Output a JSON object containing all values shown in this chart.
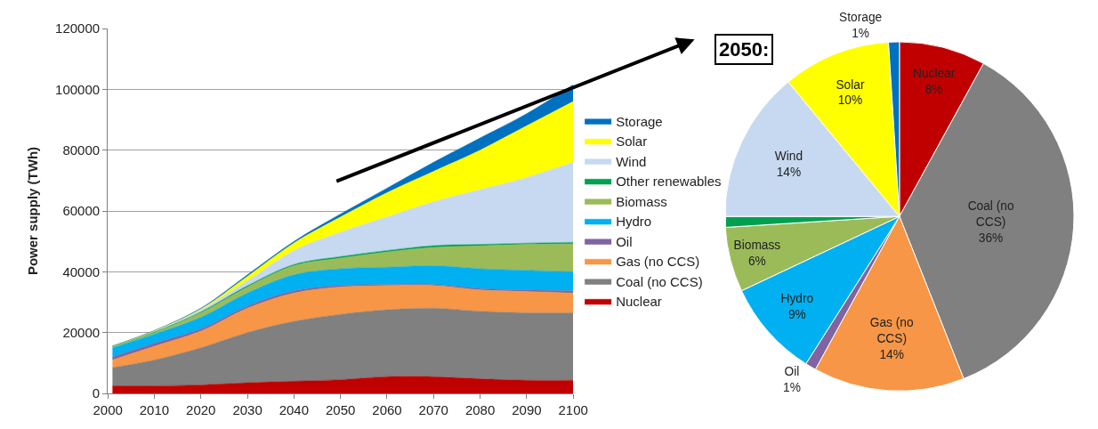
{
  "chart_data": [
    {
      "type": "area",
      "stacked": true,
      "ylabel": "Power supply (TWh)",
      "x": [
        2001,
        2010,
        2020,
        2030,
        2040,
        2050,
        2060,
        2070,
        2080,
        2090,
        2100
      ],
      "xlim": [
        2000,
        2100
      ],
      "xticks": [
        2000,
        2010,
        2020,
        2030,
        2040,
        2050,
        2060,
        2070,
        2080,
        2090,
        2100
      ],
      "ylim": [
        0,
        120000
      ],
      "yticks": [
        0,
        20000,
        40000,
        60000,
        80000,
        100000,
        120000
      ],
      "grid": "y",
      "legend": "right",
      "series": [
        {
          "name": "Nuclear",
          "color": "#c00000",
          "values": [
            2500,
            2500,
            2800,
            3500,
            4000,
            4500,
            5500,
            5500,
            4800,
            4300,
            4300
          ]
        },
        {
          "name": "Coal (no CCS)",
          "color": "#808080",
          "values": [
            6000,
            8500,
            12200,
            16500,
            19700,
            21500,
            22000,
            22500,
            22200,
            22200,
            22200
          ]
        },
        {
          "name": "Gas (no CCS)",
          "color": "#f79646",
          "values": [
            2500,
            4500,
            5500,
            8000,
            9300,
            9000,
            8000,
            7500,
            7000,
            7000,
            6500
          ]
        },
        {
          "name": "Oil",
          "color": "#8064a2",
          "values": [
            1000,
            1000,
            700,
            700,
            700,
            500,
            300,
            300,
            500,
            500,
            700
          ]
        },
        {
          "name": "Hydro",
          "color": "#00b0f0",
          "values": [
            3000,
            3000,
            3800,
            4300,
            5300,
            5500,
            5700,
            6200,
            6500,
            6500,
            6300
          ]
        },
        {
          "name": "Biomass",
          "color": "#9bbb59",
          "values": [
            300,
            500,
            1500,
            2000,
            3000,
            3500,
            5000,
            6000,
            7500,
            8500,
            9200
          ]
        },
        {
          "name": "Other renewables",
          "color": "#00a050",
          "values": [
            100,
            200,
            300,
            400,
            400,
            500,
            500,
            600,
            500,
            400,
            500
          ]
        },
        {
          "name": "Wind",
          "color": "#c6d9f1",
          "values": [
            100,
            300,
            700,
            1600,
            4600,
            8000,
            11000,
            14400,
            18000,
            21600,
            26300
          ]
        },
        {
          "name": "Solar",
          "color": "#ffff00",
          "values": [
            0,
            100,
            300,
            1500,
            2500,
            5000,
            8000,
            10000,
            13000,
            17000,
            20000
          ]
        },
        {
          "name": "Storage",
          "color": "#0070c0",
          "values": [
            100,
            100,
            200,
            500,
            500,
            1000,
            1500,
            3000,
            4000,
            4000,
            5500
          ]
        }
      ]
    },
    {
      "type": "pie",
      "title": "2050:",
      "categories": [
        "Nuclear",
        "Coal (no CCS)",
        "Gas (no CCS)",
        "Oil",
        "Hydro",
        "Biomass",
        null,
        "Wind",
        "Solar",
        "Storage"
      ],
      "values": [
        8,
        36,
        14,
        1,
        9,
        6,
        1,
        14,
        10,
        1
      ],
      "value_labels": [
        "8%",
        "36%",
        "14%",
        "1%",
        "9%",
        "6%",
        null,
        "14%",
        "10%",
        "1%"
      ],
      "colors": [
        "#c00000",
        "#808080",
        "#f79646",
        "#8064a2",
        "#00b0f0",
        "#9bbb59",
        "#00a050",
        "#c6d9f1",
        "#ffff00",
        "#0070c0"
      ]
    }
  ]
}
